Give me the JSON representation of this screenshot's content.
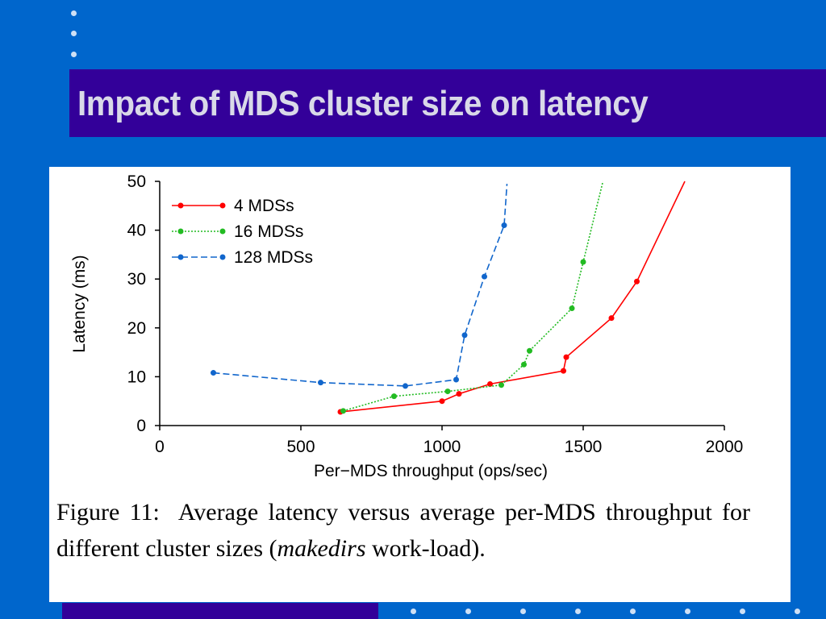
{
  "slide": {
    "title": "Impact of MDS cluster size on latency",
    "background_color": "#0066CC",
    "title_bar_color": "#330099"
  },
  "caption": {
    "label": "Figure 11:",
    "text_before": "Average latency versus average per-MDS throughput for different cluster sizes (",
    "italic": "makedirs",
    "text_after": " work-load)."
  },
  "chart_data": {
    "type": "line",
    "xlabel": "Per−MDS throughput (ops/sec)",
    "ylabel": "Latency (ms)",
    "xlim": [
      0,
      2000
    ],
    "ylim": [
      0,
      50
    ],
    "xticks": [
      "0",
      "500",
      "1000",
      "1500",
      "2000"
    ],
    "yticks": [
      "0",
      "10",
      "20",
      "30",
      "40",
      "50"
    ],
    "grid": false,
    "legend_position": "top-left",
    "series": [
      {
        "name": "4 MDSs",
        "color": "#ff0000",
        "style": "solid",
        "points": [
          [
            640,
            2.8
          ],
          [
            1000,
            5.0
          ],
          [
            1060,
            6.5
          ],
          [
            1170,
            8.5
          ],
          [
            1430,
            11.2
          ],
          [
            1440,
            14.0
          ],
          [
            1600,
            22.0
          ],
          [
            1690,
            29.5
          ],
          [
            1860,
            50.0
          ]
        ]
      },
      {
        "name": "16 MDSs",
        "color": "#22bb22",
        "style": "dotted",
        "points": [
          [
            650,
            3.0
          ],
          [
            830,
            6.0
          ],
          [
            1020,
            7.0
          ],
          [
            1210,
            8.3
          ],
          [
            1290,
            12.5
          ],
          [
            1310,
            15.3
          ],
          [
            1460,
            24.0
          ],
          [
            1500,
            33.5
          ],
          [
            1570,
            50.0
          ]
        ]
      },
      {
        "name": "128 MDSs",
        "color": "#1166cc",
        "style": "dashed",
        "points": [
          [
            190,
            10.8
          ],
          [
            570,
            8.8
          ],
          [
            870,
            8.1
          ],
          [
            1050,
            9.4
          ],
          [
            1080,
            18.5
          ],
          [
            1150,
            30.5
          ],
          [
            1220,
            41.0
          ],
          [
            1230,
            49.5
          ]
        ]
      }
    ]
  }
}
